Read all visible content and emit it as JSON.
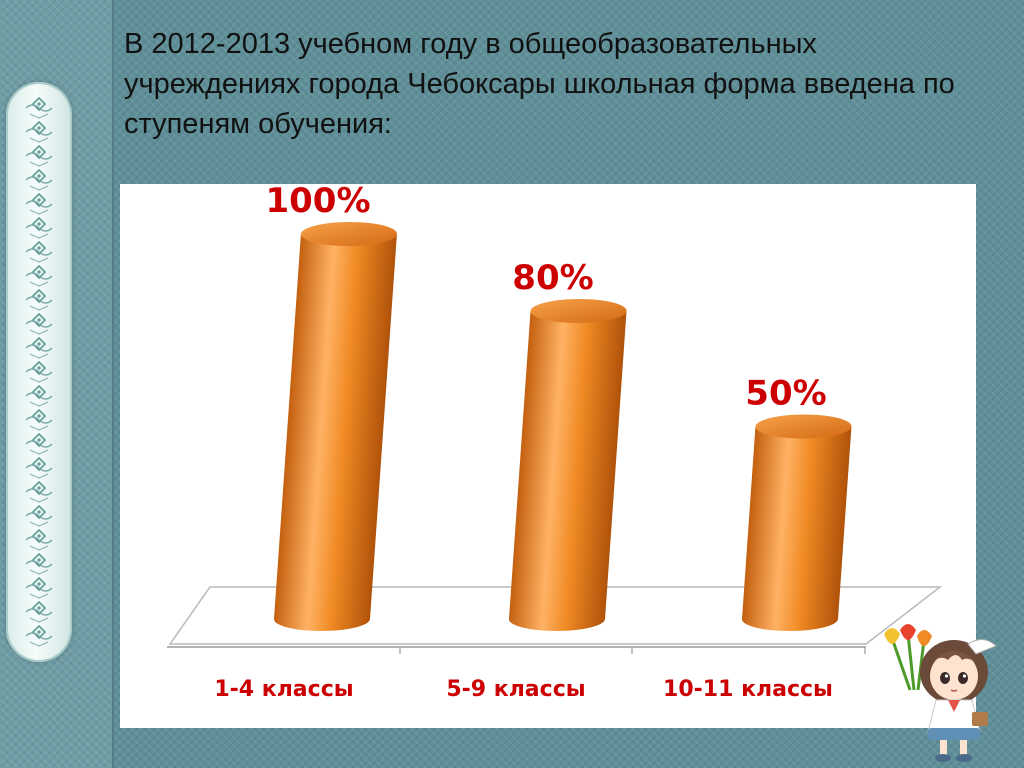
{
  "slide": {
    "title": "В 2012-2013 учебном году в общеобразовательных учреждениях города Чебоксары школьная форма введена по ступеням обучения:"
  },
  "colors": {
    "bar_main": "#f08a24",
    "bar_dark": "#c4600f",
    "bar_light": "#ffb264",
    "label_value": "#cc0000",
    "label_category": "#cc0000",
    "panel_bg": "#ffffff",
    "slide_bg": "#5f8f98"
  },
  "icons": [
    "ornament-scroll-icon",
    "girl-with-tulips-icon"
  ],
  "chart_data": {
    "type": "bar",
    "style": "3d-cylinder",
    "categories": [
      "1-4 классы",
      "5-9 классы",
      "10-11 классы"
    ],
    "values": [
      100,
      80,
      50
    ],
    "value_labels": [
      "100%",
      "80%",
      "50%"
    ],
    "ylim": [
      0,
      100
    ],
    "grid": false,
    "legend": "none",
    "xlabel": "",
    "ylabel": ""
  }
}
